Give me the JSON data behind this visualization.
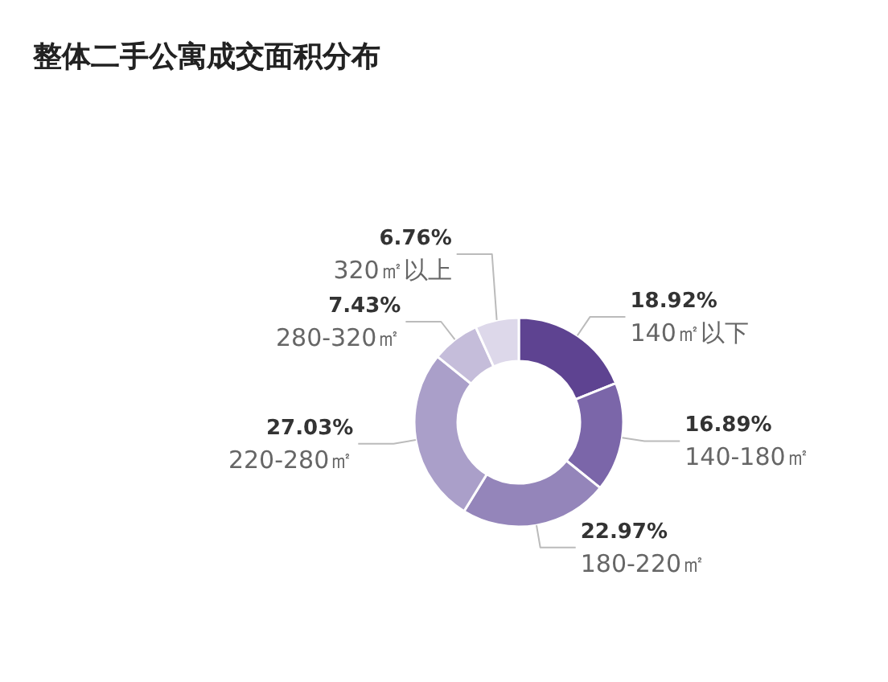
{
  "chart_data": {
    "type": "donut",
    "title": "整体二手公寓成交面积分布",
    "categories": [
      "140㎡以下",
      "140-180㎡",
      "180-220㎡",
      "220-280㎡",
      "280-320㎡",
      "320㎡以上"
    ],
    "values": [
      18.92,
      16.89,
      22.97,
      27.03,
      7.43,
      6.76
    ],
    "value_labels": [
      "18.92%",
      "16.89%",
      "22.97%",
      "27.03%",
      "7.43%",
      "6.76%"
    ],
    "colors": [
      "#5e4391",
      "#7b66a9",
      "#9485ba",
      "#aa9fc9",
      "#c5bdda",
      "#ddd8ea"
    ]
  }
}
